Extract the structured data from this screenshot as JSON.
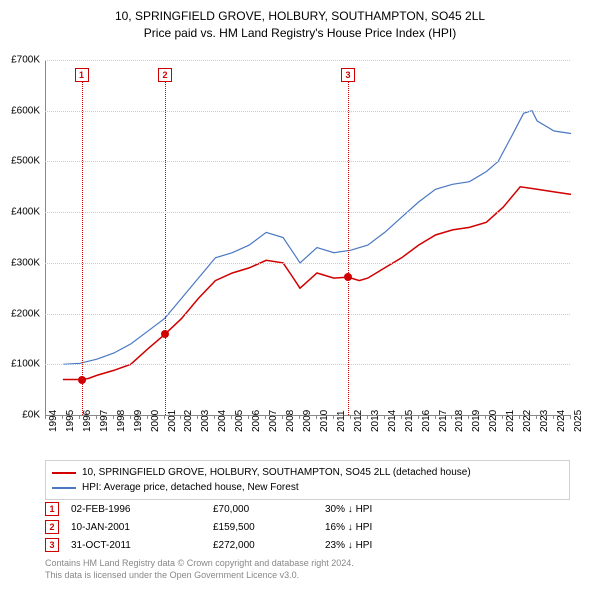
{
  "title_line1": "10, SPRINGFIELD GROVE, HOLBURY, SOUTHAMPTON, SO45 2LL",
  "title_line2": "Price paid vs. HM Land Registry's House Price Index (HPI)",
  "chart": {
    "type": "line",
    "x_start": 1994,
    "x_end": 2025,
    "x_ticks": [
      1994,
      1995,
      1996,
      1997,
      1998,
      1999,
      2000,
      2001,
      2002,
      2003,
      2004,
      2005,
      2006,
      2007,
      2008,
      2009,
      2010,
      2011,
      2012,
      2013,
      2014,
      2015,
      2016,
      2017,
      2018,
      2019,
      2020,
      2021,
      2022,
      2023,
      2024,
      2025
    ],
    "ylim": [
      0,
      700000
    ],
    "ytick_step": 100000,
    "y_tick_labels": [
      "£0K",
      "£100K",
      "£200K",
      "£300K",
      "£400K",
      "£500K",
      "£600K",
      "£700K"
    ],
    "background_color": "#ffffff",
    "grid_color": "#cccccc",
    "series": [
      {
        "name": "10, SPRINGFIELD GROVE, HOLBURY, SOUTHAMPTON, SO45 2LL (detached house)",
        "color": "#d00000",
        "line_width": 1.5,
        "data": [
          [
            1995.0,
            70000
          ],
          [
            1996.1,
            70000
          ],
          [
            1996.5,
            72000
          ],
          [
            1997.0,
            78000
          ],
          [
            1998.0,
            88000
          ],
          [
            1999.0,
            100000
          ],
          [
            2000.0,
            130000
          ],
          [
            2001.03,
            159500
          ],
          [
            2002.0,
            190000
          ],
          [
            2003.0,
            230000
          ],
          [
            2004.0,
            265000
          ],
          [
            2005.0,
            280000
          ],
          [
            2006.0,
            290000
          ],
          [
            2007.0,
            305000
          ],
          [
            2008.0,
            300000
          ],
          [
            2008.5,
            275000
          ],
          [
            2009.0,
            250000
          ],
          [
            2010.0,
            280000
          ],
          [
            2011.0,
            270000
          ],
          [
            2011.83,
            272000
          ],
          [
            2012.5,
            265000
          ],
          [
            2013.0,
            270000
          ],
          [
            2014.0,
            290000
          ],
          [
            2015.0,
            310000
          ],
          [
            2016.0,
            335000
          ],
          [
            2017.0,
            355000
          ],
          [
            2018.0,
            365000
          ],
          [
            2019.0,
            370000
          ],
          [
            2020.0,
            380000
          ],
          [
            2021.0,
            410000
          ],
          [
            2022.0,
            450000
          ],
          [
            2023.0,
            445000
          ],
          [
            2024.0,
            440000
          ],
          [
            2025.0,
            435000
          ]
        ]
      },
      {
        "name": "HPI: Average price, detached house, New Forest",
        "color": "#4a78c4",
        "line_width": 1.2,
        "data": [
          [
            1995.0,
            100000
          ],
          [
            1996.0,
            102000
          ],
          [
            1997.0,
            110000
          ],
          [
            1998.0,
            122000
          ],
          [
            1999.0,
            140000
          ],
          [
            2000.0,
            165000
          ],
          [
            2001.0,
            190000
          ],
          [
            2002.0,
            230000
          ],
          [
            2003.0,
            270000
          ],
          [
            2004.0,
            310000
          ],
          [
            2005.0,
            320000
          ],
          [
            2006.0,
            335000
          ],
          [
            2007.0,
            360000
          ],
          [
            2008.0,
            350000
          ],
          [
            2008.7,
            315000
          ],
          [
            2009.0,
            300000
          ],
          [
            2010.0,
            330000
          ],
          [
            2011.0,
            320000
          ],
          [
            2012.0,
            325000
          ],
          [
            2013.0,
            335000
          ],
          [
            2014.0,
            360000
          ],
          [
            2015.0,
            390000
          ],
          [
            2016.0,
            420000
          ],
          [
            2017.0,
            445000
          ],
          [
            2018.0,
            455000
          ],
          [
            2019.0,
            460000
          ],
          [
            2020.0,
            480000
          ],
          [
            2020.7,
            500000
          ],
          [
            2021.5,
            550000
          ],
          [
            2022.2,
            595000
          ],
          [
            2022.7,
            600000
          ],
          [
            2023.0,
            580000
          ],
          [
            2024.0,
            560000
          ],
          [
            2025.0,
            555000
          ]
        ]
      }
    ],
    "sale_markers": [
      {
        "n": "1",
        "x": 1996.1,
        "y": 70000
      },
      {
        "n": "2",
        "x": 2001.03,
        "y": 159500
      },
      {
        "n": "3",
        "x": 2011.83,
        "y": 272000
      }
    ]
  },
  "legend": {
    "items": [
      {
        "color": "#d00000",
        "label": "10, SPRINGFIELD GROVE, HOLBURY, SOUTHAMPTON, SO45 2LL (detached house)"
      },
      {
        "color": "#4a78c4",
        "label": "HPI: Average price, detached house, New Forest"
      }
    ]
  },
  "sales": [
    {
      "n": "1",
      "date": "02-FEB-1996",
      "price": "£70,000",
      "diff": "30% ↓ HPI"
    },
    {
      "n": "2",
      "date": "10-JAN-2001",
      "price": "£159,500",
      "diff": "16% ↓ HPI"
    },
    {
      "n": "3",
      "date": "31-OCT-2011",
      "price": "£272,000",
      "diff": "23% ↓ HPI"
    }
  ],
  "footer_line1": "Contains HM Land Registry data © Crown copyright and database right 2024.",
  "footer_line2": "This data is licensed under the Open Government Licence v3.0."
}
